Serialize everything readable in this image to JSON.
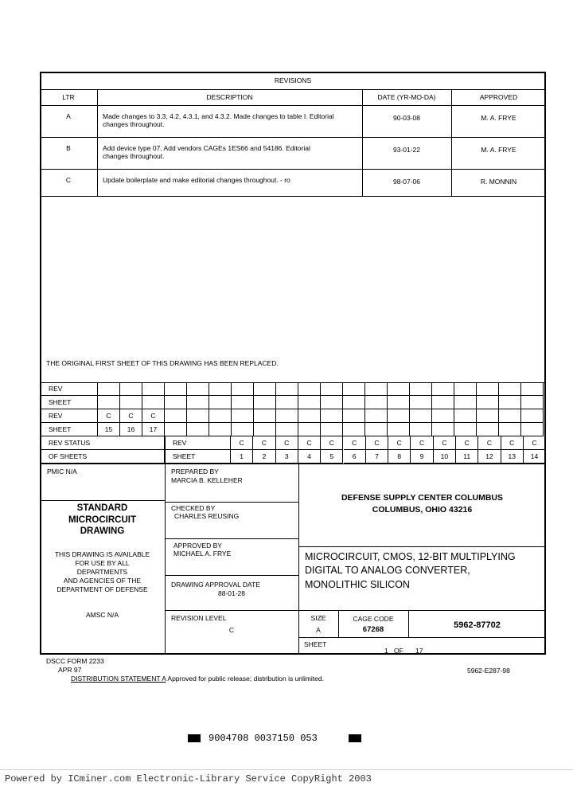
{
  "revisions": {
    "title": "REVISIONS",
    "headers": [
      "LTR",
      "DESCRIPTION",
      "DATE (YR-MO-DA)",
      "APPROVED"
    ],
    "rows": [
      {
        "ltr": "A",
        "desc1": "Made changes to 3.3, 4.2, 4.3.1, and 4.3.2.  Made changes to table I.  Editorial",
        "desc2": "changes throughout.",
        "date": "90-03-08",
        "approved": "M. A. FRYE"
      },
      {
        "ltr": "B",
        "desc1": "Add device type 07.  Add vendors CAGEs 1ES66 and 54186.  Editorial",
        "desc2": "changes throughout.",
        "date": "93-01-22",
        "approved": "M. A. FRYE"
      },
      {
        "ltr": "C",
        "desc1": "Update boilerplate and make editorial changes throughout.  - ro",
        "desc2": "",
        "date": "98-07-06",
        "approved": "R. MONNIN"
      }
    ]
  },
  "replaced_note": "THE ORIGINAL FIRST SHEET OF THIS DRAWING HAS BEEN REPLACED.",
  "status_grid": {
    "rev_label": "REV",
    "sheet_label": "SHEET",
    "upper_rev": [
      "",
      "",
      "",
      "",
      "",
      "",
      "",
      "",
      "",
      "",
      "",
      "",
      "",
      "",
      "",
      "",
      "",
      "",
      "",
      ""
    ],
    "upper_sheet": [
      "",
      "",
      "",
      "",
      "",
      "",
      "",
      "",
      "",
      "",
      "",
      "",
      "",
      "",
      "",
      "",
      "",
      "",
      "",
      ""
    ],
    "lower_rev": [
      "C",
      "C",
      "C",
      "",
      "",
      "",
      "",
      "",
      "",
      "",
      "",
      "",
      "",
      "",
      "",
      "",
      "",
      "",
      "",
      ""
    ],
    "lower_sheet": [
      "15",
      "16",
      "17",
      "",
      "",
      "",
      "",
      "",
      "",
      "",
      "",
      "",
      "",
      "",
      "",
      "",
      "",
      "",
      "",
      ""
    ],
    "status_label1": "REV STATUS",
    "status_label2": "OF SHEETS",
    "main_rev": [
      "C",
      "C",
      "C",
      "C",
      "C",
      "C",
      "C",
      "C",
      "C",
      "C",
      "C",
      "C",
      "C",
      "C"
    ],
    "main_sheet": [
      "1",
      "2",
      "3",
      "4",
      "5",
      "6",
      "7",
      "8",
      "9",
      "10",
      "11",
      "12",
      "13",
      "14"
    ]
  },
  "title_block": {
    "pmic": "PMIC N/A",
    "standard": [
      "STANDARD",
      "MICROCIRCUIT",
      "DRAWING"
    ],
    "availability": [
      "THIS DRAWING IS AVAILABLE",
      "FOR USE BY ALL",
      "DEPARTMENTS",
      "AND AGENCIES OF THE",
      "DEPARTMENT OF DEFENSE"
    ],
    "amsc": "AMSC N/A",
    "prepared_label": "PREPARED BY",
    "prepared_name": "MARCIA B. KELLEHER",
    "checked_label": "CHECKED BY",
    "checked_name": "CHARLES REUSING",
    "approved_label": "APPROVED BY",
    "approved_name": "MICHAEL A. FRYE",
    "approval_date_label": "DRAWING APPROVAL DATE",
    "approval_date": "88-01-28",
    "revision_level_label": "REVISION LEVEL",
    "revision_level": "C",
    "agency1": "DEFENSE SUPPLY CENTER COLUMBUS",
    "agency2": "COLUMBUS, OHIO  43216",
    "title1": "MICROCIRCUIT, CMOS, 12-BIT MULTIPLYING",
    "title2": "DIGITAL TO ANALOG CONVERTER,",
    "title3": "MONOLITHIC SILICON",
    "size_label": "SIZE",
    "size": "A",
    "cage_label": "CAGE CODE",
    "cage": "67268",
    "drawing_number": "5962-87702",
    "sheet_label": "SHEET",
    "sheet_num": "1",
    "sheet_of": "OF",
    "sheet_total": "17"
  },
  "form": {
    "name": "DSCC FORM 2233",
    "date": "APR 97",
    "doc_id": "5962-E287-98",
    "dist_label": "DISTRIBUTION STATEMENT A",
    "dist_text": "Approved for public release; distribution is unlimited."
  },
  "barcode": "9004708 0037150 053",
  "footer": "Powered by ICminer.com Electronic-Library Service CopyRight 2003"
}
